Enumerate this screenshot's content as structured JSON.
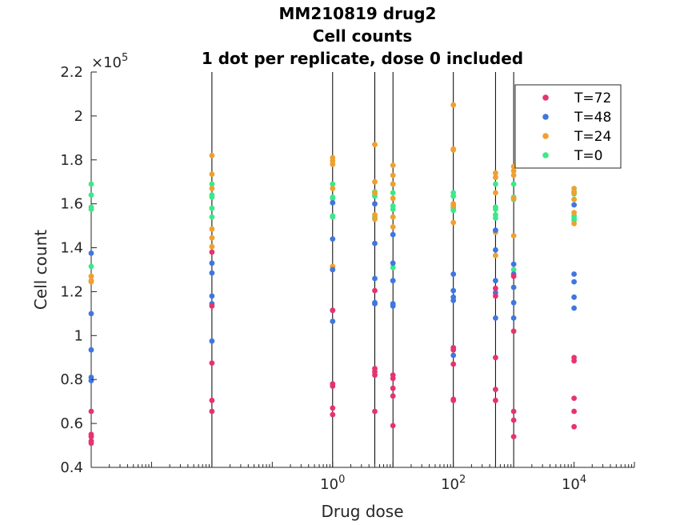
{
  "chart_data": {
    "type": "scatter",
    "title": [
      "MM210819 drug2",
      "Cell counts",
      "1 dot per replicate, dose 0 included"
    ],
    "xlabel": "Drug dose",
    "ylabel": "Cell count",
    "x_scale": "log",
    "xlim": [
      0.0001,
      100000
    ],
    "ylim": [
      40000,
      220000
    ],
    "y_exponent_label": "×10",
    "y_exponent": "5",
    "y_ticks": [
      0.4,
      0.6,
      0.8,
      1,
      1.2,
      1.4,
      1.6,
      1.8,
      2,
      2.2
    ],
    "y_tick_labels": [
      "0.4",
      "0.6",
      "0.8",
      "1",
      "1.2",
      "1.4",
      "1.6",
      "1.8",
      "2",
      "2.2"
    ],
    "x_major_ticks": [
      {
        "base": "10",
        "exp": "0",
        "value": 1
      },
      {
        "base": "10",
        "exp": "2",
        "value": 100
      },
      {
        "base": "10",
        "exp": "4",
        "value": 10000
      }
    ],
    "dose_lines": [
      0.0001,
      0.01,
      1,
      5,
      10,
      100,
      500,
      1000
    ],
    "grid": false,
    "legend_position": "top-right",
    "series": [
      {
        "name": "T=72",
        "color": "#e6336f",
        "points": [
          [
            0.0001,
            65500
          ],
          [
            0.0001,
            55000
          ],
          [
            0.0001,
            54000
          ],
          [
            0.0001,
            52000
          ],
          [
            0.0001,
            51000
          ],
          [
            0.01,
            138000
          ],
          [
            0.01,
            113500
          ],
          [
            0.01,
            87500
          ],
          [
            0.01,
            70500
          ],
          [
            0.01,
            65500
          ],
          [
            1,
            111500
          ],
          [
            1,
            78000
          ],
          [
            1,
            77000
          ],
          [
            1,
            67000
          ],
          [
            1,
            64000
          ],
          [
            5,
            120500
          ],
          [
            5,
            85000
          ],
          [
            5,
            83500
          ],
          [
            5,
            82000
          ],
          [
            5,
            65500
          ],
          [
            10,
            82000
          ],
          [
            10,
            80500
          ],
          [
            10,
            76000
          ],
          [
            10,
            72500
          ],
          [
            10,
            59000
          ],
          [
            100,
            94500
          ],
          [
            100,
            93500
          ],
          [
            100,
            87000
          ],
          [
            100,
            71000
          ],
          [
            100,
            70500
          ],
          [
            500,
            121500
          ],
          [
            500,
            118000
          ],
          [
            500,
            90000
          ],
          [
            500,
            75500
          ],
          [
            500,
            70500
          ],
          [
            1000,
            127000
          ],
          [
            1000,
            102000
          ],
          [
            1000,
            65500
          ],
          [
            1000,
            61500
          ],
          [
            1000,
            54000
          ],
          [
            10000,
            90000
          ],
          [
            10000,
            88500
          ],
          [
            10000,
            71500
          ],
          [
            10000,
            65500
          ],
          [
            10000,
            58500
          ]
        ]
      },
      {
        "name": "T=48",
        "color": "#3f76e0",
        "points": [
          [
            0.0001,
            137500
          ],
          [
            0.0001,
            110000
          ],
          [
            0.0001,
            93500
          ],
          [
            0.0001,
            81000
          ],
          [
            0.0001,
            79500
          ],
          [
            0.01,
            133000
          ],
          [
            0.01,
            128500
          ],
          [
            0.01,
            118000
          ],
          [
            0.01,
            114500
          ],
          [
            0.01,
            97500
          ],
          [
            1,
            160500
          ],
          [
            1,
            144000
          ],
          [
            1,
            130000
          ],
          [
            1,
            111500
          ],
          [
            1,
            106500
          ],
          [
            5,
            160000
          ],
          [
            5,
            142000
          ],
          [
            5,
            126000
          ],
          [
            5,
            115000
          ],
          [
            5,
            114500
          ],
          [
            10,
            146000
          ],
          [
            10,
            133000
          ],
          [
            10,
            125000
          ],
          [
            10,
            114500
          ],
          [
            10,
            113500
          ],
          [
            100,
            128000
          ],
          [
            100,
            120500
          ],
          [
            100,
            117500
          ],
          [
            100,
            116000
          ],
          [
            100,
            91000
          ],
          [
            500,
            148000
          ],
          [
            500,
            139000
          ],
          [
            500,
            125000
          ],
          [
            500,
            119500
          ],
          [
            500,
            108000
          ],
          [
            1000,
            132500
          ],
          [
            1000,
            128000
          ],
          [
            1000,
            122000
          ],
          [
            1000,
            115000
          ],
          [
            1000,
            108000
          ],
          [
            10000,
            159500
          ],
          [
            10000,
            128000
          ],
          [
            10000,
            124500
          ],
          [
            10000,
            117500
          ],
          [
            10000,
            112500
          ]
        ]
      },
      {
        "name": "T=24",
        "color": "#f0a030",
        "points": [
          [
            0.0001,
            127000
          ],
          [
            0.0001,
            125000
          ],
          [
            0.0001,
            124500
          ],
          [
            0.01,
            182000
          ],
          [
            0.01,
            173500
          ],
          [
            0.01,
            167000
          ],
          [
            0.01,
            148500
          ],
          [
            0.01,
            144500
          ],
          [
            0.01,
            140500
          ],
          [
            1,
            181000
          ],
          [
            1,
            179500
          ],
          [
            1,
            178000
          ],
          [
            1,
            167000
          ],
          [
            1,
            131500
          ],
          [
            1,
            131000
          ],
          [
            5,
            187000
          ],
          [
            5,
            170000
          ],
          [
            5,
            165000
          ],
          [
            5,
            155000
          ],
          [
            5,
            153000
          ],
          [
            10,
            177500
          ],
          [
            10,
            173000
          ],
          [
            10,
            169000
          ],
          [
            10,
            162500
          ],
          [
            10,
            154000
          ],
          [
            10,
            149500
          ],
          [
            100,
            205000
          ],
          [
            100,
            185000
          ],
          [
            100,
            184500
          ],
          [
            100,
            160000
          ],
          [
            100,
            159000
          ],
          [
            100,
            151500
          ],
          [
            500,
            174000
          ],
          [
            500,
            172000
          ],
          [
            500,
            165000
          ],
          [
            500,
            147000
          ],
          [
            500,
            136500
          ],
          [
            1000,
            177000
          ],
          [
            1000,
            175000
          ],
          [
            1000,
            173000
          ],
          [
            1000,
            162500
          ],
          [
            1000,
            145500
          ],
          [
            10000,
            167000
          ],
          [
            10000,
            165000
          ],
          [
            10000,
            162000
          ],
          [
            10000,
            156000
          ],
          [
            10000,
            151000
          ]
        ]
      },
      {
        "name": "T=0",
        "color": "#3de889",
        "points": [
          [
            0.0001,
            169000
          ],
          [
            0.0001,
            164000
          ],
          [
            0.0001,
            158500
          ],
          [
            0.0001,
            157500
          ],
          [
            0.0001,
            131500
          ],
          [
            0.01,
            169000
          ],
          [
            0.01,
            164000
          ],
          [
            0.01,
            163000
          ],
          [
            0.01,
            158000
          ],
          [
            0.01,
            154000
          ],
          [
            1,
            169000
          ],
          [
            1,
            163000
          ],
          [
            1,
            162500
          ],
          [
            1,
            154500
          ],
          [
            1,
            154000
          ],
          [
            5,
            165500
          ],
          [
            5,
            164500
          ],
          [
            5,
            163500
          ],
          [
            5,
            154000
          ],
          [
            5,
            153500
          ],
          [
            10,
            169000
          ],
          [
            10,
            165000
          ],
          [
            10,
            159000
          ],
          [
            10,
            157500
          ],
          [
            10,
            131000
          ],
          [
            100,
            165000
          ],
          [
            100,
            163500
          ],
          [
            100,
            159000
          ],
          [
            100,
            158000
          ],
          [
            100,
            157000
          ],
          [
            500,
            169000
          ],
          [
            500,
            158500
          ],
          [
            500,
            157500
          ],
          [
            500,
            155000
          ],
          [
            500,
            153500
          ],
          [
            1000,
            169000
          ],
          [
            1000,
            163000
          ],
          [
            1000,
            162500
          ],
          [
            1000,
            162000
          ],
          [
            1000,
            130000
          ],
          [
            10000,
            165500
          ],
          [
            10000,
            164500
          ],
          [
            10000,
            154500
          ],
          [
            10000,
            153500
          ],
          [
            10000,
            152500
          ]
        ]
      }
    ]
  }
}
